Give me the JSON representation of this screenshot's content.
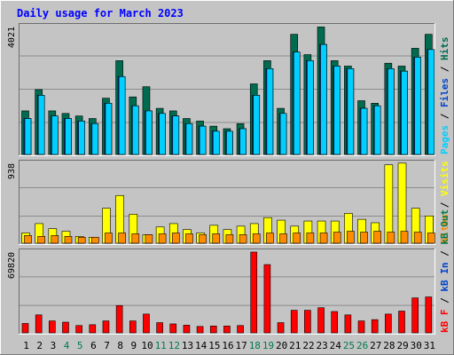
{
  "title": "Daily usage for March 2023",
  "colors": {
    "background": "#c4c4c4",
    "grid": "#8c8c8c",
    "hits": "#006b4e",
    "files": "#00cfff",
    "pages": "#00cfff",
    "sites": "#ff8c00",
    "visits": "#ffff00",
    "kbytes": "#ff0000",
    "weekend_label": "#007a4a",
    "title": "#0000ff"
  },
  "chart_data": [
    {
      "type": "bar",
      "panel": "hits-files-pages",
      "categories": [
        "1",
        "2",
        "3",
        "4",
        "5",
        "6",
        "7",
        "8",
        "9",
        "10",
        "11",
        "12",
        "13",
        "14",
        "15",
        "16",
        "17",
        "18",
        "19",
        "20",
        "21",
        "22",
        "23",
        "24",
        "25",
        "26",
        "27",
        "28",
        "29",
        "30",
        "31"
      ],
      "weekend_days": [
        "4",
        "5",
        "11",
        "12",
        "18",
        "19",
        "25",
        "26"
      ],
      "axis_max_label": "4021",
      "ylim": [
        0,
        4021
      ],
      "legend": [
        {
          "label": "Pages",
          "color": "#00cfff"
        },
        {
          "label": "Files",
          "color": "#0044cc"
        },
        {
          "label": "Hits",
          "color": "#006b4e"
        }
      ],
      "legend_separator": " / ",
      "series": [
        {
          "name": "Hits",
          "values": [
            1370,
            2040,
            1370,
            1290,
            1210,
            1130,
            1770,
            2950,
            1810,
            2130,
            1450,
            1370,
            1130,
            1050,
            890,
            810,
            970,
            2220,
            2950,
            1450,
            3780,
            3140,
            4010,
            2950,
            2780,
            1690,
            1610,
            2870,
            2780,
            3340,
            3780
          ]
        },
        {
          "name": "Files",
          "values": [
            1130,
            1860,
            1210,
            1130,
            1050,
            970,
            1610,
            2450,
            1530,
            1370,
            1290,
            1210,
            970,
            890,
            730,
            730,
            810,
            1860,
            2700,
            1290,
            3220,
            2950,
            3460,
            2780,
            2700,
            1450,
            1530,
            2700,
            2620,
            3060,
            3300
          ]
        },
        {
          "name": "Pages",
          "values": [
            1130,
            1860,
            1210,
            1130,
            1050,
            970,
            1610,
            2450,
            1530,
            1370,
            1290,
            1210,
            970,
            890,
            730,
            730,
            810,
            1860,
            2700,
            1290,
            3220,
            2950,
            3460,
            2780,
            2700,
            1450,
            1530,
            2700,
            2620,
            3060,
            3300
          ]
        }
      ]
    },
    {
      "type": "bar",
      "panel": "visits-sites",
      "categories": [
        "1",
        "2",
        "3",
        "4",
        "5",
        "6",
        "7",
        "8",
        "9",
        "10",
        "11",
        "12",
        "13",
        "14",
        "15",
        "16",
        "17",
        "18",
        "19",
        "20",
        "21",
        "22",
        "23",
        "24",
        "25",
        "26",
        "27",
        "28",
        "29",
        "30",
        "31"
      ],
      "axis_max_label": "938",
      "ylim": [
        0,
        938
      ],
      "legend": [
        {
          "label": "Sites",
          "color": "#ff8c00"
        },
        {
          "label": "Visits",
          "color": "#ffff00"
        }
      ],
      "legend_separator": " / ",
      "series": [
        {
          "name": "Visits",
          "values": [
            120,
            230,
            170,
            140,
            80,
            70,
            410,
            560,
            340,
            100,
            190,
            230,
            160,
            120,
            210,
            160,
            200,
            230,
            300,
            270,
            200,
            260,
            260,
            260,
            350,
            280,
            240,
            920,
            940,
            410,
            320
          ]
        },
        {
          "name": "Sites",
          "values": [
            90,
            80,
            90,
            80,
            70,
            70,
            120,
            120,
            110,
            100,
            110,
            120,
            110,
            100,
            110,
            100,
            100,
            110,
            120,
            110,
            120,
            120,
            120,
            130,
            140,
            130,
            140,
            130,
            140,
            130,
            120
          ]
        }
      ]
    },
    {
      "type": "bar",
      "panel": "kbytes",
      "categories": [
        "1",
        "2",
        "3",
        "4",
        "5",
        "6",
        "7",
        "8",
        "9",
        "10",
        "11",
        "12",
        "13",
        "14",
        "15",
        "16",
        "17",
        "18",
        "19",
        "20",
        "21",
        "22",
        "23",
        "24",
        "25",
        "26",
        "27",
        "28",
        "29",
        "30",
        "31"
      ],
      "axis_max_label": "69820",
      "ylim": [
        0,
        69820
      ],
      "legend": [
        {
          "label": "kB F",
          "color": "#ff0000"
        },
        {
          "label": "kB In",
          "color": "#0044cc"
        },
        {
          "label": "kB Out",
          "color": "#007a4a"
        }
      ],
      "legend_separator": " / ",
      "series": [
        {
          "name": "kB F",
          "values": [
            8100,
            15500,
            10300,
            9200,
            6300,
            7000,
            10300,
            23600,
            10300,
            16200,
            8800,
            7700,
            6600,
            5500,
            5900,
            5900,
            6300,
            69820,
            59000,
            8800,
            19500,
            19500,
            21700,
            18400,
            15500,
            10300,
            11400,
            16200,
            18800,
            30200,
            31000
          ]
        }
      ]
    }
  ],
  "ticks": {
    "font_note": ""
  }
}
